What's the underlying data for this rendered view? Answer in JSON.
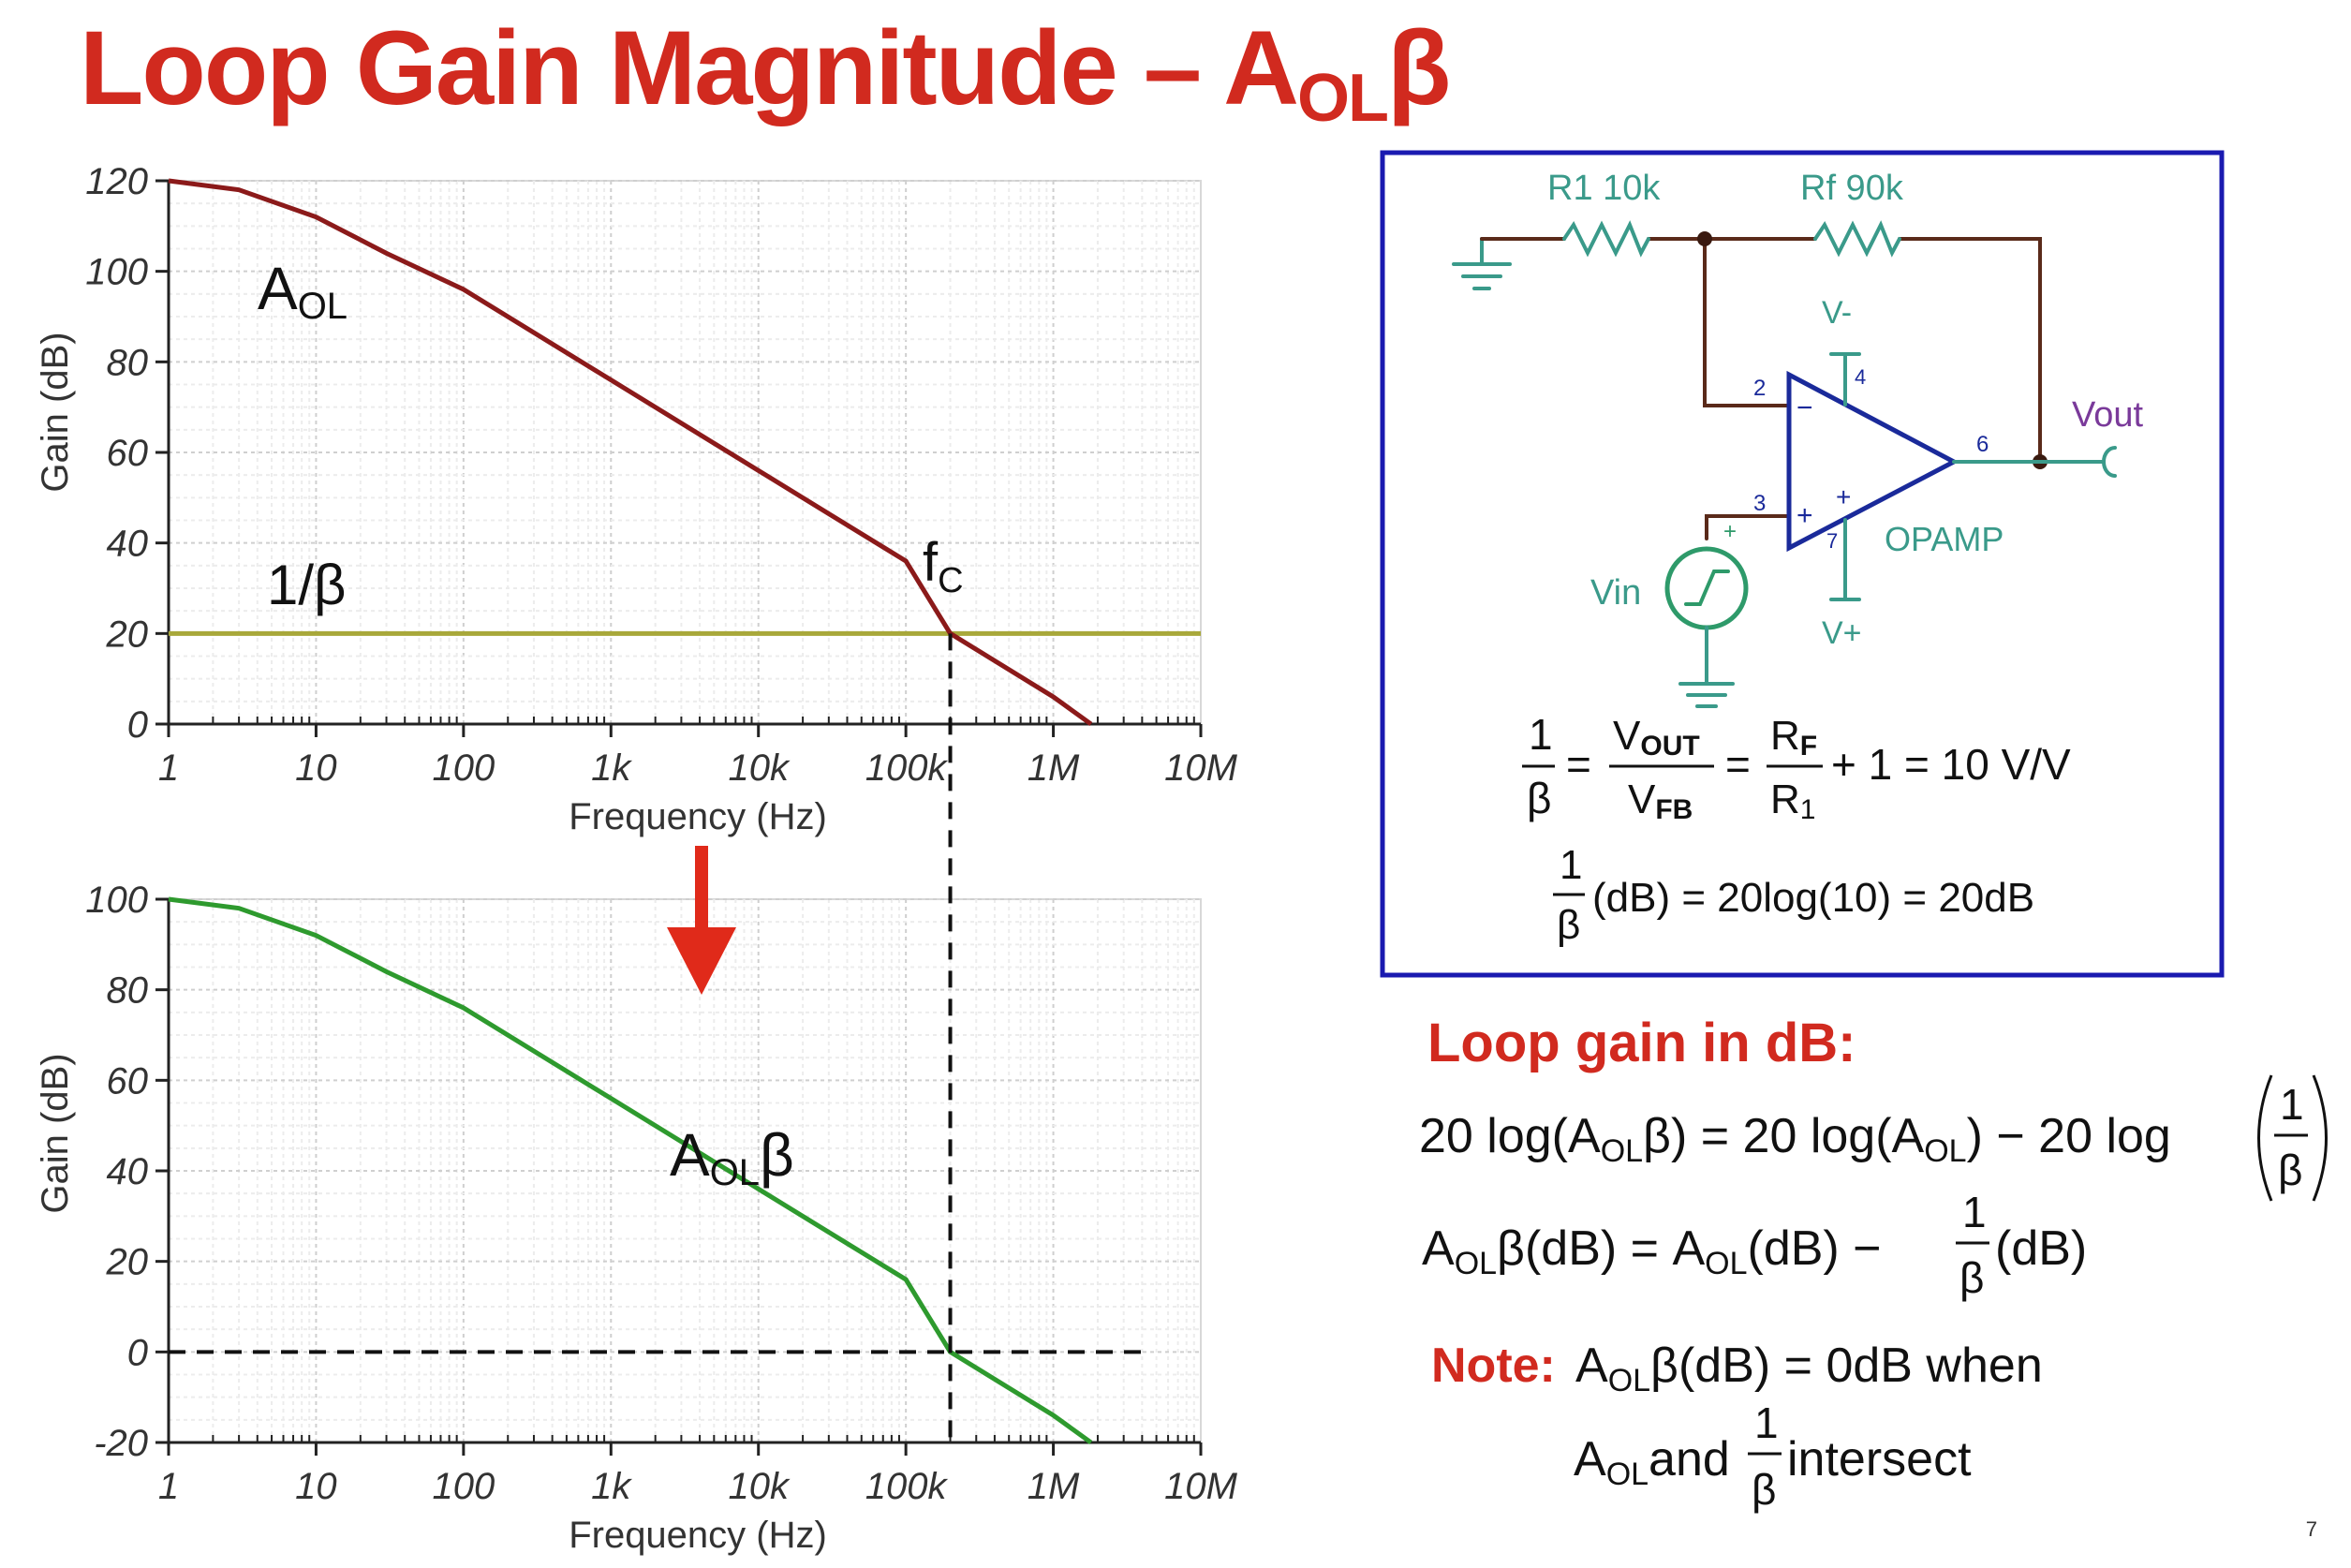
{
  "slide": {
    "title_main": "Loop Gain Magnitude – A",
    "title_sub": "OL",
    "title_tail": "β",
    "page_number": "7"
  },
  "colors": {
    "title_red": "#d12a1f",
    "aol_curve": "#8b1a1a",
    "inv_beta_line": "#a8a83a",
    "loop_gain_curve": "#2e9a2e",
    "circuit_box": "#1a1ab0",
    "wire": "#5a2a1a",
    "component_teal": "#3a9a8a",
    "opamp_blue": "#1a2a9a",
    "label_purple": "#7a3a9a",
    "arrow_red": "#e02a1a"
  },
  "chart_data": [
    {
      "type": "line",
      "name": "open-loop-gain-plot",
      "xscale": "log",
      "xlim": [
        1,
        10000000
      ],
      "ylim": [
        0,
        120
      ],
      "xticks": [
        "1",
        "10",
        "100",
        "1k",
        "10k",
        "100k",
        "1M",
        "10M"
      ],
      "yticks": [
        "120",
        "100",
        "80",
        "60",
        "40",
        "20",
        "0"
      ],
      "xlabel": "Frequency (Hz)",
      "ylabel": "Gain (dB)",
      "series": [
        {
          "name": "AOL",
          "label_main": "A",
          "label_sub": "OL",
          "x": [
            1,
            3,
            10,
            30,
            100,
            1000,
            10000,
            100000,
            200000,
            1000000,
            1800000
          ],
          "y": [
            120,
            118,
            112,
            104,
            96,
            76,
            56,
            36,
            20,
            6,
            0
          ]
        },
        {
          "name": "1/β",
          "label": "1/β",
          "x": [
            1,
            10000000
          ],
          "y": [
            20,
            20
          ]
        }
      ],
      "annotation": {
        "label_main": "f",
        "label_sub": "C",
        "x": 200000,
        "y": 20
      }
    },
    {
      "type": "line",
      "name": "loop-gain-plot",
      "xscale": "log",
      "xlim": [
        1,
        10000000
      ],
      "ylim": [
        -20,
        100
      ],
      "xticks": [
        "1",
        "10",
        "100",
        "1k",
        "10k",
        "100k",
        "1M",
        "10M"
      ],
      "yticks": [
        "100",
        "80",
        "60",
        "40",
        "20",
        "0",
        "-20"
      ],
      "xlabel": "Frequency (Hz)",
      "ylabel": "Gain (dB)",
      "series": [
        {
          "name": "AOLβ",
          "label_main": "A",
          "label_sub": "OL",
          "label_tail": "β",
          "x": [
            1,
            3,
            10,
            30,
            100,
            1000,
            10000,
            100000,
            200000,
            1000000,
            1800000
          ],
          "y": [
            100,
            98,
            92,
            84,
            76,
            56,
            36,
            16,
            0,
            -14,
            -20
          ]
        }
      ],
      "reference_line_y": 0
    }
  ],
  "circuit": {
    "r1": "R1 10k",
    "rf": "Rf 90k",
    "vminus": "V-",
    "vplus": "V+",
    "vout": "Vout",
    "vin": "Vin",
    "opamp": "OPAMP",
    "pin2": "2",
    "pin3": "3",
    "pin4": "4",
    "pin6": "6",
    "pin7": "7",
    "minus_sign": "−",
    "plus_sign": "+"
  },
  "equations": {
    "eq1": {
      "one": "1",
      "beta": "β",
      "eq": "=",
      "vout": "V",
      "vout_sub": "OUT",
      "vfb": "V",
      "vfb_sub": "FB",
      "rf": "R",
      "rf_sub": "F",
      "r1": "R",
      "r1_sub": "1",
      "tail": "+ 1 = 10 V/V"
    },
    "eq2": {
      "one": "1",
      "beta": "β",
      "tail": "(dB) = 20log(10) = 20dB"
    }
  },
  "loop_gain": {
    "heading": "Loop gain in dB:",
    "line1_a": "20 log(A",
    "sub_ol": "OL",
    "line1_b": "β) = 20 log(A",
    "line1_c": ") − 20 log",
    "one": "1",
    "beta": "β",
    "line2_a": "A",
    "line2_b": "β(dB) = A",
    "line2_c": "(dB) −",
    "line2_d": "(dB)",
    "note_label": "Note:",
    "note_a": "A",
    "note_b": "β(dB) = 0dB when",
    "note_c": "A",
    "note_d": "and",
    "note_e": "intersect"
  }
}
